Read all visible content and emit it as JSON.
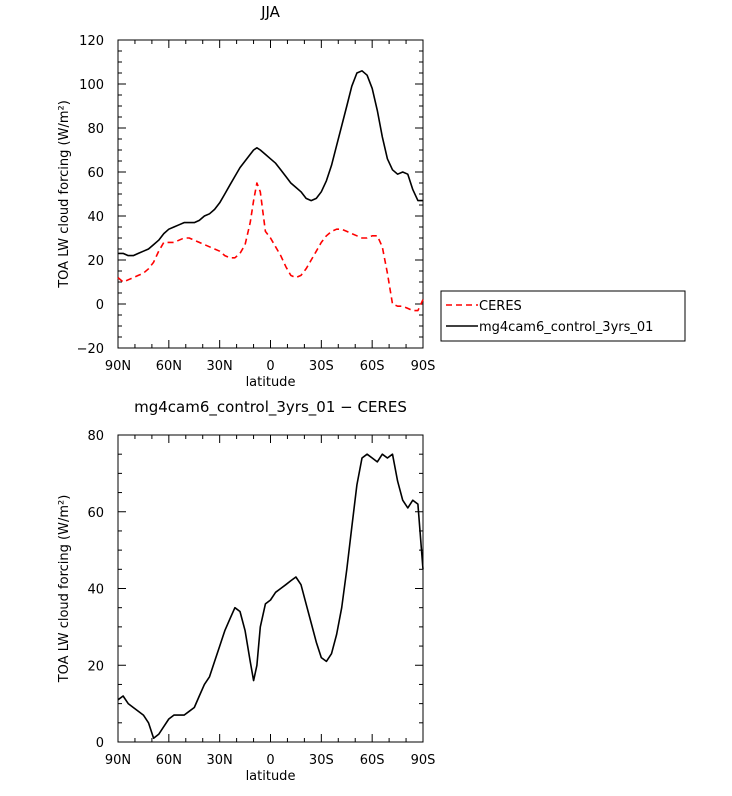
{
  "chart_data": [
    {
      "type": "line",
      "title": "JJA",
      "xlabel": "latitude",
      "ylabel": "TOA LW cloud forcing (W/m²)",
      "ylim": [
        -20,
        120
      ],
      "xlim": [
        90,
        -90
      ],
      "x_ticks": [
        90,
        60,
        30,
        0,
        -30,
        -60,
        -90
      ],
      "x_tick_labels": [
        "90N",
        "60N",
        "30N",
        "0",
        "30S",
        "60S",
        "90S"
      ],
      "y_ticks": [
        -20,
        0,
        20,
        40,
        60,
        80,
        100,
        120
      ],
      "y_tick_labels": [
        "−20",
        "0",
        "20",
        "40",
        "60",
        "80",
        "100",
        "120"
      ],
      "legend_position": "right, outside",
      "series": [
        {
          "name": "CERES",
          "color": "#ff0000",
          "style": "dashed",
          "x": [
            90,
            87,
            84,
            81,
            78,
            75,
            72,
            69,
            66,
            63,
            60,
            57,
            54,
            51,
            48,
            45,
            42,
            39,
            36,
            33,
            30,
            27,
            24,
            21,
            18,
            15,
            12,
            10,
            8,
            6,
            3,
            0,
            -3,
            -6,
            -9,
            -12,
            -15,
            -18,
            -21,
            -24,
            -27,
            -30,
            -33,
            -36,
            -39,
            -42,
            -45,
            -48,
            -51,
            -54,
            -57,
            -60,
            -63,
            -66,
            -69,
            -72,
            -75,
            -78,
            -81,
            -84,
            -87,
            -90
          ],
          "values": [
            12,
            10,
            11,
            12,
            13,
            14,
            16,
            19,
            24,
            28,
            28,
            28,
            29,
            30,
            30,
            29,
            28,
            27,
            26,
            25,
            24,
            22,
            21,
            21,
            23,
            27,
            37,
            47,
            55,
            51,
            33,
            30,
            26,
            22,
            17,
            13,
            12,
            13,
            16,
            20,
            24,
            28,
            31,
            33,
            34,
            34,
            33,
            32,
            31,
            30,
            30,
            31,
            31,
            26,
            14,
            0,
            -1,
            -1,
            -2,
            -3,
            -3,
            2
          ]
        },
        {
          "name": "mg4cam6_control_3yrs_01",
          "color": "#000000",
          "style": "solid",
          "x": [
            90,
            87,
            84,
            81,
            78,
            75,
            72,
            69,
            66,
            63,
            60,
            57,
            54,
            51,
            48,
            45,
            42,
            39,
            36,
            33,
            30,
            27,
            24,
            21,
            18,
            15,
            12,
            10,
            8,
            6,
            3,
            0,
            -3,
            -6,
            -9,
            -12,
            -15,
            -18,
            -21,
            -24,
            -27,
            -30,
            -33,
            -36,
            -39,
            -42,
            -45,
            -48,
            -51,
            -54,
            -57,
            -60,
            -63,
            -66,
            -69,
            -72,
            -75,
            -78,
            -81,
            -84,
            -87,
            -90
          ],
          "values": [
            23,
            23,
            22,
            22,
            23,
            24,
            25,
            27,
            29,
            32,
            34,
            35,
            36,
            37,
            37,
            37,
            38,
            40,
            41,
            43,
            46,
            50,
            54,
            58,
            62,
            65,
            68,
            70,
            71,
            70,
            68,
            66,
            64,
            61,
            58,
            55,
            53,
            51,
            48,
            47,
            48,
            51,
            56,
            63,
            72,
            81,
            90,
            99,
            105,
            106,
            104,
            98,
            88,
            76,
            66,
            61,
            59,
            60,
            59,
            52,
            47,
            47
          ]
        }
      ]
    },
    {
      "type": "line",
      "title": "mg4cam6_control_3yrs_01 − CERES",
      "xlabel": "latitude",
      "ylabel": "TOA LW cloud forcing (W/m²)",
      "ylim": [
        0,
        80
      ],
      "xlim": [
        90,
        -90
      ],
      "x_ticks": [
        90,
        60,
        30,
        0,
        -30,
        -60,
        -90
      ],
      "x_tick_labels": [
        "90N",
        "60N",
        "30N",
        "0",
        "30S",
        "60S",
        "90S"
      ],
      "y_ticks": [
        0,
        20,
        40,
        60,
        80
      ],
      "y_tick_labels": [
        "0",
        "20",
        "40",
        "60",
        "80"
      ],
      "series": [
        {
          "color": "#000000",
          "style": "solid",
          "x": [
            90,
            87,
            84,
            81,
            78,
            75,
            72,
            69,
            66,
            63,
            60,
            57,
            54,
            51,
            48,
            45,
            42,
            39,
            36,
            33,
            30,
            27,
            24,
            21,
            18,
            15,
            12,
            10,
            8,
            6,
            3,
            0,
            -3,
            -6,
            -9,
            -12,
            -15,
            -18,
            -21,
            -24,
            -27,
            -30,
            -33,
            -36,
            -39,
            -42,
            -45,
            -48,
            -51,
            -54,
            -57,
            -60,
            -63,
            -66,
            -69,
            -72,
            -75,
            -78,
            -81,
            -84,
            -87,
            -90
          ],
          "values": [
            11,
            12,
            10,
            9,
            8,
            7,
            5,
            1,
            2,
            4,
            6,
            7,
            7,
            7,
            8,
            9,
            12,
            15,
            17,
            21,
            25,
            29,
            32,
            35,
            34,
            29,
            21,
            16,
            20,
            30,
            36,
            37,
            39,
            40,
            41,
            42,
            43,
            41,
            36,
            31,
            26,
            22,
            21,
            23,
            28,
            35,
            45,
            56,
            67,
            74,
            75,
            74,
            73,
            75,
            74,
            75,
            68,
            63,
            61,
            63,
            62,
            45
          ]
        }
      ]
    }
  ]
}
